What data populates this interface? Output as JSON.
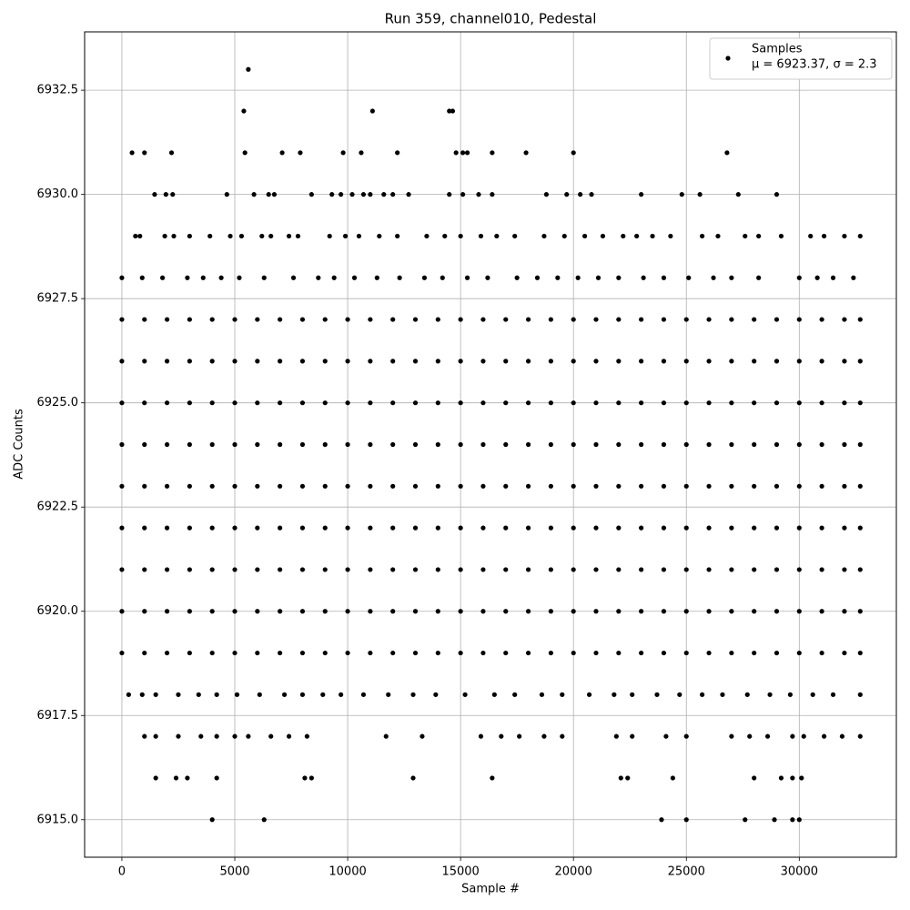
{
  "chart_data": {
    "type": "scatter",
    "title": "Run 359, channel010, Pedestal",
    "xlabel": "Sample #",
    "ylabel": "ADC Counts",
    "color": "#000000",
    "grid": true,
    "legend_loc": "upper right",
    "legend_label": [
      "Samples",
      "μ = 6923.37, σ = 2.3"
    ],
    "xlim": [
      -1650,
      34300
    ],
    "ylim": [
      6914.1,
      6933.9
    ],
    "xticks": [
      0,
      5000,
      10000,
      15000,
      20000,
      25000,
      30000
    ],
    "yticks": [
      {
        "value": 6915,
        "label": "6915.0"
      },
      6917.5,
      {
        "value": 6920,
        "label": "6920.0"
      },
      6922.5,
      {
        "value": 6925,
        "label": "6925.0"
      },
      6927.5,
      {
        "value": 6930,
        "label": "6930.0"
      },
      6932.5
    ],
    "x": [
      5600,
      5400,
      11100,
      14500,
      14650,
      450,
      1000,
      2200,
      5450,
      7100,
      7900,
      9800,
      10600,
      12200,
      14800,
      15100,
      15300,
      16400,
      17900,
      20000,
      26800,
      1450,
      1950,
      2250,
      4650,
      5850,
      6500,
      6750,
      8400,
      9300,
      9700,
      10200,
      10700,
      11000,
      11600,
      12000,
      12700,
      14500,
      15100,
      15800,
      16400,
      18800,
      19700,
      20300,
      20800,
      23000,
      24800,
      25600,
      27300,
      29000,
      600,
      800,
      1900,
      2300,
      3000,
      3900,
      4800,
      5300,
      6200,
      6600,
      7400,
      7800,
      9200,
      9900,
      10500,
      11400,
      12200,
      13500,
      14300,
      15000,
      15900,
      16600,
      17400,
      18700,
      19600,
      20500,
      21300,
      22200,
      22800,
      23500,
      24300,
      25700,
      26400,
      27600,
      28200,
      29200,
      30500,
      31100,
      32000,
      32700,
      0,
      900,
      1800,
      2900,
      3600,
      4400,
      5200,
      6300,
      7600,
      8700,
      9400,
      10300,
      11300,
      12300,
      13400,
      14200,
      15300,
      16200,
      17500,
      18400,
      19300,
      20200,
      21100,
      22000,
      23100,
      24000,
      25100,
      26200,
      27000,
      28200,
      30000,
      30800,
      31500,
      32400,
      0,
      1000,
      2000,
      3000,
      4000,
      5000,
      6000,
      7000,
      8000,
      9000,
      10000,
      11000,
      12000,
      13000,
      14000,
      15000,
      16000,
      17000,
      18000,
      19000,
      20000,
      21000,
      22000,
      23000,
      24000,
      25000,
      26000,
      27000,
      28000,
      29000,
      30000,
      31000,
      32000,
      32700,
      0,
      1000,
      2000,
      3000,
      4000,
      5000,
      6000,
      7000,
      8000,
      9000,
      10000,
      11000,
      12000,
      13000,
      14000,
      15000,
      16000,
      17000,
      18000,
      19000,
      20000,
      21000,
      22000,
      23000,
      24000,
      25000,
      26000,
      27000,
      28000,
      29000,
      30000,
      31000,
      32000,
      32700,
      0,
      1000,
      2000,
      3000,
      4000,
      5000,
      6000,
      7000,
      8000,
      9000,
      10000,
      11000,
      12000,
      13000,
      14000,
      15000,
      16000,
      17000,
      18000,
      19000,
      20000,
      21000,
      22000,
      23000,
      24000,
      25000,
      26000,
      27000,
      28000,
      29000,
      30000,
      31000,
      32000,
      32700,
      0,
      1000,
      2000,
      3000,
      4000,
      5000,
      6000,
      7000,
      8000,
      9000,
      10000,
      11000,
      12000,
      13000,
      14000,
      15000,
      16000,
      17000,
      18000,
      19000,
      20000,
      21000,
      22000,
      23000,
      24000,
      25000,
      26000,
      27000,
      28000,
      29000,
      30000,
      31000,
      32000,
      32700,
      0,
      1000,
      2000,
      3000,
      4000,
      5000,
      6000,
      7000,
      8000,
      9000,
      10000,
      11000,
      12000,
      13000,
      14000,
      15000,
      16000,
      17000,
      18000,
      19000,
      20000,
      21000,
      22000,
      23000,
      24000,
      25000,
      26000,
      27000,
      28000,
      29000,
      30000,
      31000,
      32000,
      32700,
      0,
      1000,
      2000,
      3000,
      4000,
      5000,
      6000,
      7000,
      8000,
      9000,
      10000,
      11000,
      12000,
      13000,
      14000,
      15000,
      16000,
      17000,
      18000,
      19000,
      20000,
      21000,
      22000,
      23000,
      24000,
      25000,
      26000,
      27000,
      28000,
      29000,
      30000,
      31000,
      32000,
      32700,
      0,
      1000,
      2000,
      3000,
      4000,
      5000,
      6000,
      7000,
      8000,
      9000,
      10000,
      11000,
      12000,
      13000,
      14000,
      15000,
      16000,
      17000,
      18000,
      19000,
      20000,
      21000,
      22000,
      23000,
      24000,
      25000,
      26000,
      27000,
      28000,
      29000,
      30000,
      31000,
      32000,
      32700,
      0,
      1000,
      2000,
      3000,
      4000,
      5000,
      6000,
      7000,
      8000,
      9000,
      10000,
      11000,
      12000,
      13000,
      14000,
      15000,
      16000,
      17000,
      18000,
      19000,
      20000,
      21000,
      22000,
      23000,
      24000,
      25000,
      26000,
      27000,
      28000,
      29000,
      30000,
      31000,
      32000,
      32700,
      0,
      1000,
      2000,
      3000,
      4000,
      5000,
      6000,
      7000,
      8000,
      9000,
      10000,
      11000,
      12000,
      13000,
      14000,
      15000,
      16000,
      17000,
      18000,
      19000,
      20000,
      21000,
      22000,
      23000,
      24000,
      25000,
      26000,
      27000,
      28000,
      29000,
      30000,
      31000,
      32000,
      32700,
      300,
      900,
      1500,
      2500,
      3400,
      4200,
      5100,
      6100,
      7200,
      8000,
      8900,
      9700,
      10700,
      11800,
      12900,
      13900,
      15200,
      16500,
      17400,
      18600,
      19500,
      20700,
      21800,
      22600,
      23700,
      24700,
      25700,
      26600,
      27700,
      28700,
      29600,
      30600,
      31500,
      32700,
      1000,
      1500,
      2500,
      3500,
      4200,
      5000,
      5600,
      6600,
      7400,
      8200,
      11700,
      13300,
      15900,
      16800,
      17600,
      18700,
      19500,
      21900,
      22600,
      24100,
      25000,
      27000,
      27800,
      28600,
      29700,
      30200,
      31100,
      31900,
      32700,
      1500,
      2400,
      2900,
      4200,
      8100,
      8400,
      12900,
      16400,
      22100,
      22400,
      24400,
      28000,
      29200,
      29700,
      30100,
      4000,
      6300,
      23900,
      25000,
      27600,
      28900,
      29700,
      30000
    ],
    "values": [
      6933,
      6932,
      6932,
      6932,
      6932,
      6931,
      6931,
      6931,
      6931,
      6931,
      6931,
      6931,
      6931,
      6931,
      6931,
      6931,
      6931,
      6931,
      6931,
      6931,
      6931,
      6930,
      6930,
      6930,
      6930,
      6930,
      6930,
      6930,
      6930,
      6930,
      6930,
      6930,
      6930,
      6930,
      6930,
      6930,
      6930,
      6930,
      6930,
      6930,
      6930,
      6930,
      6930,
      6930,
      6930,
      6930,
      6930,
      6930,
      6930,
      6930,
      6929,
      6929,
      6929,
      6929,
      6929,
      6929,
      6929,
      6929,
      6929,
      6929,
      6929,
      6929,
      6929,
      6929,
      6929,
      6929,
      6929,
      6929,
      6929,
      6929,
      6929,
      6929,
      6929,
      6929,
      6929,
      6929,
      6929,
      6929,
      6929,
      6929,
      6929,
      6929,
      6929,
      6929,
      6929,
      6929,
      6929,
      6929,
      6929,
      6929,
      6928,
      6928,
      6928,
      6928,
      6928,
      6928,
      6928,
      6928,
      6928,
      6928,
      6928,
      6928,
      6928,
      6928,
      6928,
      6928,
      6928,
      6928,
      6928,
      6928,
      6928,
      6928,
      6928,
      6928,
      6928,
      6928,
      6928,
      6928,
      6928,
      6928,
      6928,
      6928,
      6928,
      6928,
      6927,
      6927,
      6927,
      6927,
      6927,
      6927,
      6927,
      6927,
      6927,
      6927,
      6927,
      6927,
      6927,
      6927,
      6927,
      6927,
      6927,
      6927,
      6927,
      6927,
      6927,
      6927,
      6927,
      6927,
      6927,
      6927,
      6927,
      6927,
      6927,
      6927,
      6927,
      6927,
      6927,
      6927,
      6926,
      6926,
      6926,
      6926,
      6926,
      6926,
      6926,
      6926,
      6926,
      6926,
      6926,
      6926,
      6926,
      6926,
      6926,
      6926,
      6926,
      6926,
      6926,
      6926,
      6926,
      6926,
      6926,
      6926,
      6926,
      6926,
      6926,
      6926,
      6926,
      6926,
      6926,
      6926,
      6926,
      6926,
      6925,
      6925,
      6925,
      6925,
      6925,
      6925,
      6925,
      6925,
      6925,
      6925,
      6925,
      6925,
      6925,
      6925,
      6925,
      6925,
      6925,
      6925,
      6925,
      6925,
      6925,
      6925,
      6925,
      6925,
      6925,
      6925,
      6925,
      6925,
      6925,
      6925,
      6925,
      6925,
      6925,
      6925,
      6924,
      6924,
      6924,
      6924,
      6924,
      6924,
      6924,
      6924,
      6924,
      6924,
      6924,
      6924,
      6924,
      6924,
      6924,
      6924,
      6924,
      6924,
      6924,
      6924,
      6924,
      6924,
      6924,
      6924,
      6924,
      6924,
      6924,
      6924,
      6924,
      6924,
      6924,
      6924,
      6924,
      6924,
      6923,
      6923,
      6923,
      6923,
      6923,
      6923,
      6923,
      6923,
      6923,
      6923,
      6923,
      6923,
      6923,
      6923,
      6923,
      6923,
      6923,
      6923,
      6923,
      6923,
      6923,
      6923,
      6923,
      6923,
      6923,
      6923,
      6923,
      6923,
      6923,
      6923,
      6923,
      6923,
      6923,
      6923,
      6922,
      6922,
      6922,
      6922,
      6922,
      6922,
      6922,
      6922,
      6922,
      6922,
      6922,
      6922,
      6922,
      6922,
      6922,
      6922,
      6922,
      6922,
      6922,
      6922,
      6922,
      6922,
      6922,
      6922,
      6922,
      6922,
      6922,
      6922,
      6922,
      6922,
      6922,
      6922,
      6922,
      6922,
      6921,
      6921,
      6921,
      6921,
      6921,
      6921,
      6921,
      6921,
      6921,
      6921,
      6921,
      6921,
      6921,
      6921,
      6921,
      6921,
      6921,
      6921,
      6921,
      6921,
      6921,
      6921,
      6921,
      6921,
      6921,
      6921,
      6921,
      6921,
      6921,
      6921,
      6921,
      6921,
      6921,
      6921,
      6920,
      6920,
      6920,
      6920,
      6920,
      6920,
      6920,
      6920,
      6920,
      6920,
      6920,
      6920,
      6920,
      6920,
      6920,
      6920,
      6920,
      6920,
      6920,
      6920,
      6920,
      6920,
      6920,
      6920,
      6920,
      6920,
      6920,
      6920,
      6920,
      6920,
      6920,
      6920,
      6920,
      6920,
      6919,
      6919,
      6919,
      6919,
      6919,
      6919,
      6919,
      6919,
      6919,
      6919,
      6919,
      6919,
      6919,
      6919,
      6919,
      6919,
      6919,
      6919,
      6919,
      6919,
      6919,
      6919,
      6919,
      6919,
      6919,
      6919,
      6919,
      6919,
      6919,
      6919,
      6919,
      6919,
      6919,
      6919,
      6918,
      6918,
      6918,
      6918,
      6918,
      6918,
      6918,
      6918,
      6918,
      6918,
      6918,
      6918,
      6918,
      6918,
      6918,
      6918,
      6918,
      6918,
      6918,
      6918,
      6918,
      6918,
      6918,
      6918,
      6918,
      6918,
      6918,
      6918,
      6918,
      6918,
      6918,
      6918,
      6918,
      6918,
      6917,
      6917,
      6917,
      6917,
      6917,
      6917,
      6917,
      6917,
      6917,
      6917,
      6917,
      6917,
      6917,
      6917,
      6917,
      6917,
      6917,
      6917,
      6917,
      6917,
      6917,
      6917,
      6917,
      6917,
      6917,
      6917,
      6917,
      6917,
      6917,
      6916,
      6916,
      6916,
      6916,
      6916,
      6916,
      6916,
      6916,
      6916,
      6916,
      6916,
      6916,
      6916,
      6916,
      6916,
      6915,
      6915,
      6915,
      6915,
      6915,
      6915,
      6915,
      6915
    ]
  }
}
